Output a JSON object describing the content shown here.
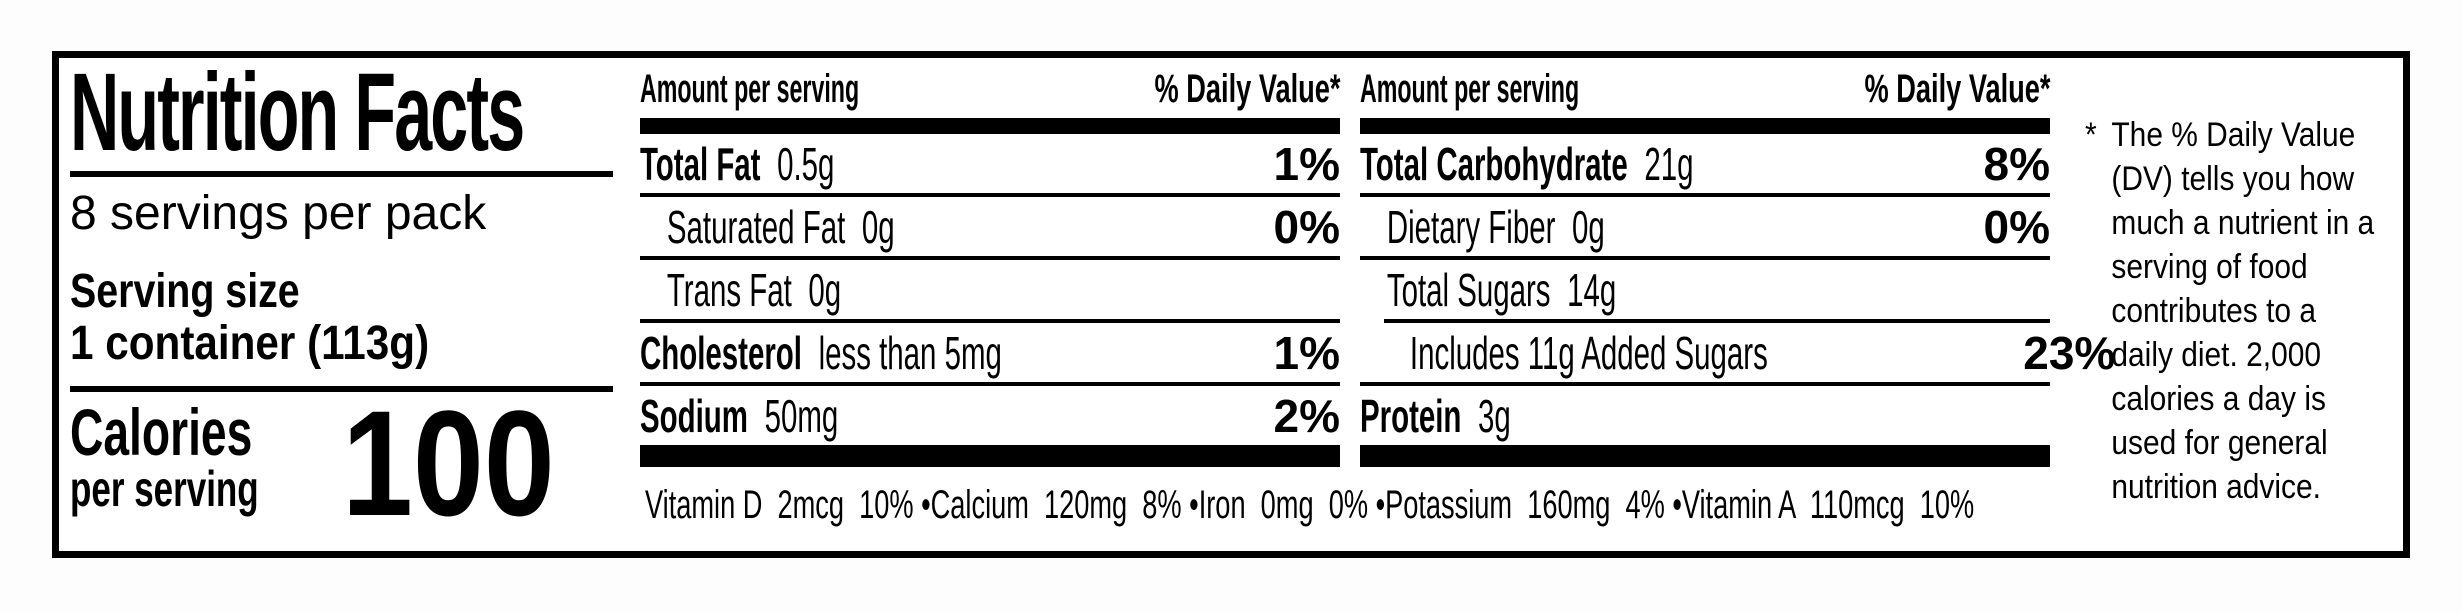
{
  "colors": {
    "ink": "#000000",
    "paper": "#ffffff"
  },
  "label": {
    "title": "Nutrition Facts",
    "servings_per_container": "8 servings per pack",
    "serving_size": {
      "label": "Serving size",
      "value": "1 container (113g)"
    },
    "calories": {
      "word1": "Calories",
      "word2": "per serving",
      "value": "100"
    },
    "columns": [
      {
        "header_left": "Amount per serving",
        "header_right": "% Daily Value*",
        "rows": [
          {
            "label": "Total Fat",
            "amount": "0.5g",
            "dv": "1%"
          },
          {
            "label": "Saturated Fat",
            "amount": "0g",
            "dv": "0%"
          },
          {
            "label": "Trans Fat",
            "amount": "0g",
            "dv": ""
          },
          {
            "label": "Cholesterol",
            "amount": "less than 5mg",
            "dv": "1%"
          },
          {
            "label": "Sodium",
            "amount": "50mg",
            "dv": "2%"
          }
        ]
      },
      {
        "header_left": "Amount per serving",
        "header_right": "% Daily Value*",
        "rows": [
          {
            "label": "Total Carbohydrate",
            "amount": "21g",
            "dv": "8%"
          },
          {
            "label": "Dietary Fiber",
            "amount": "0g",
            "dv": "0%"
          },
          {
            "label": "Total Sugars",
            "amount": "14g",
            "dv": ""
          },
          {
            "label": "Includes 11g Added Sugars",
            "amount": "",
            "dv": "23%"
          },
          {
            "label": "Protein",
            "amount": "3g",
            "dv": ""
          }
        ]
      }
    ],
    "micronutrients_line": "Vitamin D  2mcg  10% •Calcium  120mg  8% •Iron  0mg  0% •Potassium  160mg  4% •Vitamin A  110mcg  10%",
    "footnote": {
      "marker": "*",
      "text": "The % Daily Value (DV) tells you how much a nutrient in a serving of food contributes to a daily diet. 2,000 calories a day is used for general nutrition advice."
    }
  }
}
